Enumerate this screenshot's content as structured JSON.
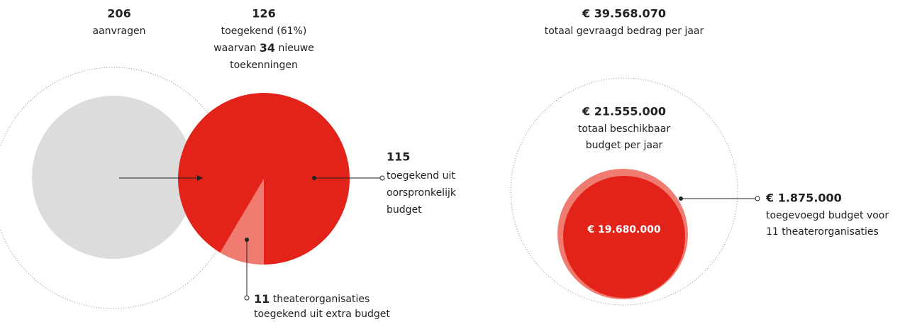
{
  "left": {
    "requests": {
      "number": "206",
      "label": "aanvragen"
    },
    "granted": {
      "number": "126",
      "label": "toegekend (61%)",
      "prefix": "waarvan",
      "new_number": "34",
      "suffix": "nieuwe",
      "label2": "toekenningen"
    },
    "original": {
      "number": "115",
      "lines": [
        "toegekend uit",
        "oorspronkelijk",
        "budget"
      ]
    },
    "extra": {
      "number": "11",
      "text": "theaterorganisaties",
      "line2": "toegekend uit extra budget"
    }
  },
  "right": {
    "requested": {
      "amount": "€ 39.568.070",
      "label": "totaal gevraagd bedrag per jaar"
    },
    "available": {
      "amount": "€ 21.555.000",
      "lines": [
        "totaal beschikbaar",
        "budget per jaar"
      ]
    },
    "base": {
      "amount": "€ 19.680.000"
    },
    "added": {
      "amount": "€ 1.875.000",
      "lines": [
        "toegevoegd budget voor",
        "11 theaterorganisaties"
      ]
    }
  }
}
